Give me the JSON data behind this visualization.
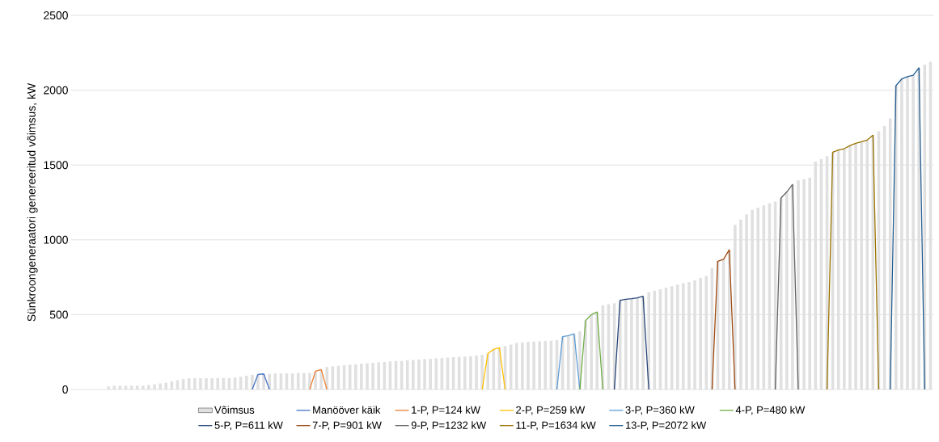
{
  "chart_data": {
    "type": "bar",
    "ylabel": "Sünkroongeneraatori genereeritud võimsus, kW",
    "ylim": [
      0,
      2500
    ],
    "yticks": [
      0,
      500,
      1000,
      1500,
      2000,
      2500
    ],
    "grid": "y",
    "legend": "bottom",
    "tick_labels": "y",
    "categories": [
      null,
      null,
      null,
      null,
      null,
      null,
      null,
      null,
      null,
      null,
      null,
      null,
      null,
      null,
      null,
      null,
      null,
      null,
      null,
      null,
      null,
      null,
      null,
      null,
      null,
      null,
      null,
      null,
      null,
      null,
      null,
      null,
      null,
      null,
      null,
      null,
      null,
      null,
      null,
      null,
      null,
      null,
      null,
      null,
      null,
      null,
      null,
      null,
      null,
      null,
      null,
      null,
      null,
      null,
      null,
      null,
      null,
      null,
      null,
      null,
      null,
      null,
      null,
      null,
      null,
      null,
      null,
      null,
      null,
      null,
      null,
      null,
      null,
      null,
      null,
      null,
      null,
      null,
      null,
      null,
      null,
      null,
      null,
      null,
      null,
      null,
      null,
      null,
      null,
      null,
      null,
      null,
      null,
      null,
      null,
      null,
      null,
      null,
      null,
      null,
      null,
      null,
      null,
      null,
      null,
      null,
      null,
      null,
      null,
      null,
      null,
      null,
      null,
      null,
      null,
      null,
      null,
      null,
      null,
      null,
      null,
      null,
      null,
      null,
      null,
      null,
      null,
      null,
      null,
      null,
      null,
      null,
      null,
      null,
      null,
      null,
      null,
      null,
      null,
      null,
      null,
      null,
      null,
      null,
      null,
      null,
      null,
      null,
      null,
      null
    ],
    "series": [
      {
        "name": "Võimsus",
        "color": "#e0e0e0",
        "values": [
          null,
          null,
          null,
          null,
          null,
          null,
          20,
          25,
          25,
          25,
          25,
          25,
          25,
          30,
          35,
          40,
          45,
          55,
          62,
          70,
          74,
          75,
          75,
          75,
          75,
          77,
          77,
          77,
          80,
          85,
          92,
          98,
          100,
          104,
          105,
          107,
          107,
          107,
          107,
          110,
          110,
          110,
          122,
          133,
          150,
          155,
          158,
          162,
          165,
          168,
          172,
          175,
          178,
          181,
          184,
          187,
          190,
          191,
          195,
          198,
          200,
          203,
          205,
          208,
          210,
          213,
          216,
          218,
          220,
          222,
          227,
          232,
          240,
          268,
          279,
          290,
          300,
          311,
          315,
          318,
          320,
          322,
          324,
          326,
          330,
          353,
          360,
          372,
          389,
          460,
          500,
          518,
          563,
          570,
          576,
          596,
          603,
          607,
          612,
          623,
          650,
          660,
          670,
          680,
          690,
          700,
          710,
          717,
          730,
          745,
          758,
          812,
          857,
          870,
          933,
          1100,
          1135,
          1170,
          1200,
          1215,
          1230,
          1245,
          1255,
          1280,
          1320,
          1370,
          1397,
          1405,
          1415,
          1523,
          1540,
          1559,
          1586,
          1600,
          1609,
          1630,
          1645,
          1655,
          1667,
          1699,
          1725,
          1760,
          1811,
          2030,
          2075,
          2090,
          2100,
          2149,
          2170,
          2190
        ]
      },
      {
        "name": "Manööver käik",
        "type": "line",
        "color": "#4472c4",
        "values": [
          null,
          null,
          null,
          null,
          null,
          null,
          null,
          null,
          null,
          null,
          null,
          null,
          null,
          null,
          null,
          null,
          null,
          null,
          null,
          null,
          null,
          null,
          null,
          null,
          null,
          null,
          null,
          null,
          null,
          null,
          null,
          0,
          100,
          104,
          0,
          null,
          null,
          null,
          null,
          null,
          null,
          null,
          null,
          null,
          null,
          null,
          null,
          null,
          null,
          null,
          null,
          null,
          null,
          null,
          null,
          null,
          null,
          null,
          null,
          null,
          null,
          null,
          null,
          null,
          null,
          null,
          null,
          null,
          null,
          null,
          null,
          null,
          null,
          null,
          null,
          null,
          null,
          null,
          null,
          null,
          null,
          null,
          null,
          null,
          null,
          null,
          null,
          null,
          null,
          null,
          null,
          null,
          null,
          null,
          null,
          null,
          null,
          null,
          null,
          null,
          null,
          null,
          null,
          null,
          null,
          null,
          null,
          null,
          null,
          null,
          null,
          null,
          null,
          null,
          null,
          null,
          null,
          null,
          null,
          null,
          null,
          null,
          null,
          null,
          null,
          null,
          null,
          null,
          null,
          null,
          null,
          null,
          null,
          null,
          null,
          null,
          null,
          null,
          null,
          null,
          null,
          null,
          null,
          null,
          null,
          null,
          null,
          null,
          null,
          null
        ]
      },
      {
        "name": "1-P, P=124 kW",
        "type": "line",
        "color": "#ed7d31",
        "values": [
          null,
          null,
          null,
          null,
          null,
          null,
          null,
          null,
          null,
          null,
          null,
          null,
          null,
          null,
          null,
          null,
          null,
          null,
          null,
          null,
          null,
          null,
          null,
          null,
          null,
          null,
          null,
          null,
          null,
          null,
          null,
          null,
          null,
          null,
          null,
          null,
          null,
          null,
          null,
          null,
          null,
          0,
          122,
          133,
          0,
          null,
          null,
          null,
          null,
          null,
          null,
          null,
          null,
          null,
          null,
          null,
          null,
          null,
          null,
          null,
          null,
          null,
          null,
          null,
          null,
          null,
          null,
          null,
          null,
          null,
          null,
          null,
          null,
          null,
          null,
          null,
          null,
          null,
          null,
          null,
          null,
          null,
          null,
          null,
          null,
          null,
          null,
          null,
          null,
          null,
          null,
          null,
          null,
          null,
          null,
          null,
          null,
          null,
          null,
          null,
          null,
          null,
          null,
          null,
          null,
          null,
          null,
          null,
          null,
          null,
          null,
          null,
          null,
          null,
          null,
          null,
          null,
          null,
          null,
          null,
          null,
          null,
          null,
          null,
          null,
          null,
          null,
          null,
          null,
          null,
          null,
          null,
          null,
          null,
          null,
          null,
          null,
          null,
          null,
          null,
          null,
          null,
          null,
          null,
          null,
          null,
          null,
          null,
          null,
          null
        ]
      },
      {
        "name": "2-P, P=259 kW",
        "type": "line",
        "color": "#ffc000",
        "values": [
          null,
          null,
          null,
          null,
          null,
          null,
          null,
          null,
          null,
          null,
          null,
          null,
          null,
          null,
          null,
          null,
          null,
          null,
          null,
          null,
          null,
          null,
          null,
          null,
          null,
          null,
          null,
          null,
          null,
          null,
          null,
          null,
          null,
          null,
          null,
          null,
          null,
          null,
          null,
          null,
          null,
          null,
          null,
          null,
          null,
          null,
          null,
          null,
          null,
          null,
          null,
          null,
          null,
          null,
          null,
          null,
          null,
          null,
          null,
          null,
          null,
          null,
          null,
          null,
          null,
          null,
          null,
          null,
          null,
          null,
          null,
          0,
          240,
          268,
          279,
          0,
          null,
          null,
          null,
          null,
          null,
          null,
          null,
          null,
          null,
          null,
          null,
          null,
          null,
          null,
          null,
          null,
          null,
          null,
          null,
          null,
          null,
          null,
          null,
          null,
          null,
          null,
          null,
          null,
          null,
          null,
          null,
          null,
          null,
          null,
          null,
          null,
          null,
          null,
          null,
          null,
          null,
          null,
          null,
          null,
          null,
          null,
          null,
          null,
          null,
          null,
          null,
          null,
          null,
          null,
          null,
          null,
          null,
          null,
          null,
          null,
          null,
          null,
          null,
          null,
          null,
          null,
          null,
          null,
          null,
          null,
          null,
          null,
          null,
          null
        ]
      },
      {
        "name": "3-P, P=360 kW",
        "type": "line",
        "color": "#5b9bd5",
        "values": [
          null,
          null,
          null,
          null,
          null,
          null,
          null,
          null,
          null,
          null,
          null,
          null,
          null,
          null,
          null,
          null,
          null,
          null,
          null,
          null,
          null,
          null,
          null,
          null,
          null,
          null,
          null,
          null,
          null,
          null,
          null,
          null,
          null,
          null,
          null,
          null,
          null,
          null,
          null,
          null,
          null,
          null,
          null,
          null,
          null,
          null,
          null,
          null,
          null,
          null,
          null,
          null,
          null,
          null,
          null,
          null,
          null,
          null,
          null,
          null,
          null,
          null,
          null,
          null,
          null,
          null,
          null,
          null,
          null,
          null,
          null,
          null,
          null,
          null,
          null,
          null,
          null,
          null,
          null,
          null,
          null,
          null,
          null,
          null,
          0,
          353,
          360,
          372,
          0,
          null,
          null,
          null,
          null,
          null,
          null,
          null,
          null,
          null,
          null,
          null,
          null,
          null,
          null,
          null,
          null,
          null,
          null,
          null,
          null,
          null,
          null,
          null,
          null,
          null,
          null,
          null,
          null,
          null,
          null,
          null,
          null,
          null,
          null,
          null,
          null,
          null,
          null,
          null,
          null,
          null,
          null,
          null,
          null,
          null,
          null,
          null,
          null,
          null,
          null,
          null,
          null,
          null,
          null,
          null,
          null,
          null,
          null,
          null,
          null,
          null
        ]
      },
      {
        "name": "4-P, P=480 kW",
        "type": "line",
        "color": "#70ad47",
        "values": [
          null,
          null,
          null,
          null,
          null,
          null,
          null,
          null,
          null,
          null,
          null,
          null,
          null,
          null,
          null,
          null,
          null,
          null,
          null,
          null,
          null,
          null,
          null,
          null,
          null,
          null,
          null,
          null,
          null,
          null,
          null,
          null,
          null,
          null,
          null,
          null,
          null,
          null,
          null,
          null,
          null,
          null,
          null,
          null,
          null,
          null,
          null,
          null,
          null,
          null,
          null,
          null,
          null,
          null,
          null,
          null,
          null,
          null,
          null,
          null,
          null,
          null,
          null,
          null,
          null,
          null,
          null,
          null,
          null,
          null,
          null,
          null,
          null,
          null,
          null,
          null,
          null,
          null,
          null,
          null,
          null,
          null,
          null,
          null,
          null,
          null,
          null,
          null,
          0,
          460,
          500,
          518,
          0,
          null,
          null,
          null,
          null,
          null,
          null,
          null,
          null,
          null,
          null,
          null,
          null,
          null,
          null,
          null,
          null,
          null,
          null,
          null,
          null,
          null,
          null,
          null,
          null,
          null,
          null,
          null,
          null,
          null,
          null,
          null,
          null,
          null,
          null,
          null,
          null,
          null,
          null,
          null,
          null,
          null,
          null,
          null,
          null,
          null,
          null,
          null,
          null,
          null,
          null,
          null,
          null,
          null,
          null,
          null,
          null,
          null
        ]
      },
      {
        "name": "5-P, P=611 kW",
        "type": "line",
        "color": "#264478",
        "values": [
          null,
          null,
          null,
          null,
          null,
          null,
          null,
          null,
          null,
          null,
          null,
          null,
          null,
          null,
          null,
          null,
          null,
          null,
          null,
          null,
          null,
          null,
          null,
          null,
          null,
          null,
          null,
          null,
          null,
          null,
          null,
          null,
          null,
          null,
          null,
          null,
          null,
          null,
          null,
          null,
          null,
          null,
          null,
          null,
          null,
          null,
          null,
          null,
          null,
          null,
          null,
          null,
          null,
          null,
          null,
          null,
          null,
          null,
          null,
          null,
          null,
          null,
          null,
          null,
          null,
          null,
          null,
          null,
          null,
          null,
          null,
          null,
          null,
          null,
          null,
          null,
          null,
          null,
          null,
          null,
          null,
          null,
          null,
          null,
          null,
          null,
          null,
          null,
          null,
          null,
          null,
          null,
          null,
          null,
          0,
          596,
          603,
          607,
          612,
          623,
          0,
          null,
          null,
          null,
          null,
          null,
          null,
          null,
          null,
          null,
          null,
          null,
          null,
          null,
          null,
          null,
          null,
          null,
          null,
          null,
          null,
          null,
          null,
          null,
          null,
          null,
          null,
          null,
          null,
          null,
          null,
          null,
          null,
          null,
          null,
          null,
          null,
          null,
          null,
          null,
          null,
          null,
          null,
          null,
          null,
          null,
          null,
          null,
          null,
          null
        ]
      },
      {
        "name": "7-P, P=901 kW",
        "type": "line",
        "color": "#9e480e",
        "values": [
          null,
          null,
          null,
          null,
          null,
          null,
          null,
          null,
          null,
          null,
          null,
          null,
          null,
          null,
          null,
          null,
          null,
          null,
          null,
          null,
          null,
          null,
          null,
          null,
          null,
          null,
          null,
          null,
          null,
          null,
          null,
          null,
          null,
          null,
          null,
          null,
          null,
          null,
          null,
          null,
          null,
          null,
          null,
          null,
          null,
          null,
          null,
          null,
          null,
          null,
          null,
          null,
          null,
          null,
          null,
          null,
          null,
          null,
          null,
          null,
          null,
          null,
          null,
          null,
          null,
          null,
          null,
          null,
          null,
          null,
          null,
          null,
          null,
          null,
          null,
          null,
          null,
          null,
          null,
          null,
          null,
          null,
          null,
          null,
          null,
          null,
          null,
          null,
          null,
          null,
          null,
          null,
          null,
          null,
          null,
          null,
          null,
          null,
          null,
          null,
          null,
          null,
          null,
          null,
          null,
          null,
          null,
          null,
          null,
          null,
          null,
          0,
          857,
          870,
          933,
          0,
          null,
          null,
          null,
          null,
          null,
          null,
          null,
          null,
          null,
          null,
          null,
          null,
          null,
          null,
          null,
          null,
          null,
          null,
          null,
          null,
          null,
          null,
          null,
          null,
          null,
          null,
          null,
          null,
          null,
          null,
          null,
          null,
          null,
          null
        ]
      },
      {
        "name": "9-P, P=1232 kW",
        "type": "line",
        "color": "#636363",
        "values": [
          null,
          null,
          null,
          null,
          null,
          null,
          null,
          null,
          null,
          null,
          null,
          null,
          null,
          null,
          null,
          null,
          null,
          null,
          null,
          null,
          null,
          null,
          null,
          null,
          null,
          null,
          null,
          null,
          null,
          null,
          null,
          null,
          null,
          null,
          null,
          null,
          null,
          null,
          null,
          null,
          null,
          null,
          null,
          null,
          null,
          null,
          null,
          null,
          null,
          null,
          null,
          null,
          null,
          null,
          null,
          null,
          null,
          null,
          null,
          null,
          null,
          null,
          null,
          null,
          null,
          null,
          null,
          null,
          null,
          null,
          null,
          null,
          null,
          null,
          null,
          null,
          null,
          null,
          null,
          null,
          null,
          null,
          null,
          null,
          null,
          null,
          null,
          null,
          null,
          null,
          null,
          null,
          null,
          null,
          null,
          null,
          null,
          null,
          null,
          null,
          null,
          null,
          null,
          null,
          null,
          null,
          null,
          null,
          null,
          null,
          null,
          null,
          null,
          null,
          null,
          null,
          null,
          null,
          null,
          null,
          null,
          null,
          0,
          1280,
          1320,
          1370,
          0,
          null,
          null,
          null,
          null,
          null,
          null,
          null,
          null,
          null,
          null,
          null,
          null,
          null,
          null,
          null,
          null,
          null,
          null,
          null,
          null,
          null,
          null,
          null
        ]
      },
      {
        "name": "11-P, P=1634 kW",
        "type": "line",
        "color": "#997300",
        "values": [
          null,
          null,
          null,
          null,
          null,
          null,
          null,
          null,
          null,
          null,
          null,
          null,
          null,
          null,
          null,
          null,
          null,
          null,
          null,
          null,
          null,
          null,
          null,
          null,
          null,
          null,
          null,
          null,
          null,
          null,
          null,
          null,
          null,
          null,
          null,
          null,
          null,
          null,
          null,
          null,
          null,
          null,
          null,
          null,
          null,
          null,
          null,
          null,
          null,
          null,
          null,
          null,
          null,
          null,
          null,
          null,
          null,
          null,
          null,
          null,
          null,
          null,
          null,
          null,
          null,
          null,
          null,
          null,
          null,
          null,
          null,
          null,
          null,
          null,
          null,
          null,
          null,
          null,
          null,
          null,
          null,
          null,
          null,
          null,
          null,
          null,
          null,
          null,
          null,
          null,
          null,
          null,
          null,
          null,
          null,
          null,
          null,
          null,
          null,
          null,
          null,
          null,
          null,
          null,
          null,
          null,
          null,
          null,
          null,
          null,
          null,
          null,
          null,
          null,
          null,
          null,
          null,
          null,
          null,
          null,
          null,
          null,
          null,
          null,
          null,
          null,
          null,
          null,
          null,
          null,
          null,
          0,
          1586,
          1600,
          1609,
          1630,
          1645,
          1655,
          1667,
          1699,
          0,
          null,
          null,
          null,
          null,
          null,
          null,
          null,
          null,
          null
        ]
      },
      {
        "name": "13-P, P=2072 kW",
        "type": "line",
        "color": "#255e91",
        "values": [
          null,
          null,
          null,
          null,
          null,
          null,
          null,
          null,
          null,
          null,
          null,
          null,
          null,
          null,
          null,
          null,
          null,
          null,
          null,
          null,
          null,
          null,
          null,
          null,
          null,
          null,
          null,
          null,
          null,
          null,
          null,
          null,
          null,
          null,
          null,
          null,
          null,
          null,
          null,
          null,
          null,
          null,
          null,
          null,
          null,
          null,
          null,
          null,
          null,
          null,
          null,
          null,
          null,
          null,
          null,
          null,
          null,
          null,
          null,
          null,
          null,
          null,
          null,
          null,
          null,
          null,
          null,
          null,
          null,
          null,
          null,
          null,
          null,
          null,
          null,
          null,
          null,
          null,
          null,
          null,
          null,
          null,
          null,
          null,
          null,
          null,
          null,
          null,
          null,
          null,
          null,
          null,
          null,
          null,
          null,
          null,
          null,
          null,
          null,
          null,
          null,
          null,
          null,
          null,
          null,
          null,
          null,
          null,
          null,
          null,
          null,
          null,
          null,
          null,
          null,
          null,
          null,
          null,
          null,
          null,
          null,
          null,
          null,
          null,
          null,
          null,
          null,
          null,
          null,
          null,
          null,
          null,
          null,
          null,
          null,
          null,
          null,
          null,
          null,
          null,
          null,
          null,
          0,
          2030,
          2075,
          2090,
          2100,
          2149,
          0,
          null
        ]
      }
    ]
  }
}
